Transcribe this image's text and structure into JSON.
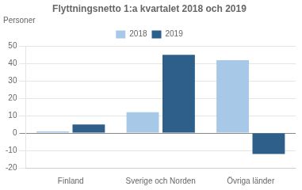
{
  "chart_data": {
    "type": "bar",
    "title": "Flyttningsnetto 1:a kvartalet 2018 och 2019",
    "ylabel": "Personer",
    "categories": [
      "Finland",
      "Sverige och Norden",
      "Övriga länder"
    ],
    "series": [
      {
        "name": "2018",
        "color": "#a8c8e8",
        "values": [
          1,
          12,
          42
        ]
      },
      {
        "name": "2019",
        "color": "#2e5f8a",
        "values": [
          5,
          45,
          -12
        ]
      }
    ],
    "ylim": [
      -20,
      50
    ],
    "yticks": [
      -20,
      -10,
      0,
      10,
      20,
      30,
      40,
      50
    ],
    "grid": true,
    "legend": "top"
  }
}
